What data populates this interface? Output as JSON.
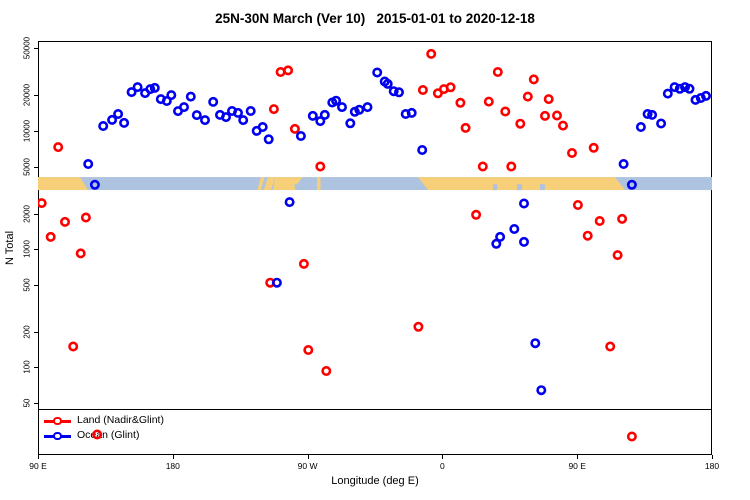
{
  "title": "25N-30N March (Ver 10)   2015-01-01 to 2020-12-18",
  "chart_data": {
    "type": "scatter",
    "title": "25N-30N March (Ver 10)   2015-01-01 to 2020-12-18",
    "xlabel": "Longitude (deg E)",
    "ylabel": "N Total",
    "x_axis": {
      "note": "longitude drawn sequentially eastward from 90E, spanning 450 degrees",
      "range": [
        90,
        540
      ],
      "ticks": [
        {
          "pos": 90,
          "label": "90 E"
        },
        {
          "pos": 180,
          "label": "180"
        },
        {
          "pos": 270,
          "label": "90 W"
        },
        {
          "pos": 360,
          "label": "0"
        },
        {
          "pos": 450,
          "label": "90 E"
        },
        {
          "pos": 540,
          "label": "180"
        }
      ]
    },
    "y_axis": {
      "scale": "log",
      "ticks": [
        50000,
        20000,
        10000,
        5000,
        2000,
        1000,
        500,
        200,
        100,
        50
      ],
      "top_value": 50000,
      "bottom_value": 18
    },
    "map_band": {
      "description": "land/ocean strip for 25N-30N drawn across all longitudes",
      "value_top": 4070,
      "value_bottom": 3160,
      "land_color": "#F7CF78",
      "ocean_color": "#AEC3DF",
      "land_polygons": [
        {
          "tf": 90,
          "tt": 118,
          "bt": 123.4,
          "bf": 90,
          "h": 1
        },
        {
          "tf": 238.8,
          "tt": 241.2,
          "bt": 238.8,
          "bf": 236.5,
          "h": 1
        },
        {
          "tf": 243.5,
          "tt": 248.5,
          "bt": 245.5,
          "bf": 240.8,
          "h": 1
        },
        {
          "tf": 248.5,
          "tt": 260.3,
          "bt": 261.8,
          "bf": 246.8,
          "h": 1
        },
        {
          "tf": 260.3,
          "tt": 266.5,
          "bt": 263.0,
          "bf": 260.3,
          "h": 0.55
        },
        {
          "tf": 276.3,
          "tt": 278.6,
          "bt": 278.6,
          "bf": 276.3,
          "h": 1
        },
        {
          "tf": 343.7,
          "tt": 475.2,
          "bt": 481.9,
          "bf": 350.4,
          "h": 1
        }
      ],
      "ocean_specks_bottom": [
        {
          "from": 393.8,
          "to": 396.6
        },
        {
          "from": 409.8,
          "to": 413.2
        },
        {
          "from": 425.1,
          "to": 428.4
        }
      ]
    },
    "series": [
      {
        "name": "Land (Nadir&Glint)",
        "color": "#FF0000",
        "points": [
          [
            103.5,
            7300
          ],
          [
            92.5,
            2450
          ],
          [
            98.5,
            1270
          ],
          [
            108,
            1700
          ],
          [
            113.5,
            150
          ],
          [
            118.5,
            920
          ],
          [
            122,
            1850
          ],
          [
            129.5,
            27
          ],
          [
            245,
            520
          ],
          [
            247.5,
            15300
          ],
          [
            252,
            31500
          ],
          [
            257,
            32500
          ],
          [
            261.5,
            10400
          ],
          [
            267.5,
            750
          ],
          [
            270.5,
            140
          ],
          [
            278.5,
            5000
          ],
          [
            282.5,
            93
          ],
          [
            344,
            220
          ],
          [
            347,
            22200
          ],
          [
            352.5,
            44800
          ],
          [
            357,
            20800
          ],
          [
            361,
            22600
          ],
          [
            365.5,
            23400
          ],
          [
            372,
            17300
          ],
          [
            375.5,
            10600
          ],
          [
            382.5,
            1950
          ],
          [
            387,
            5000
          ],
          [
            391,
            17700
          ],
          [
            397,
            31500
          ],
          [
            402,
            14600
          ],
          [
            406,
            5000
          ],
          [
            412,
            11500
          ],
          [
            417,
            19500
          ],
          [
            421,
            27300
          ],
          [
            428.5,
            13400
          ],
          [
            431,
            18600
          ],
          [
            436.5,
            13500
          ],
          [
            440.5,
            11100
          ],
          [
            446.5,
            6500
          ],
          [
            450.5,
            2360
          ],
          [
            457,
            1300
          ],
          [
            461,
            7200
          ],
          [
            465,
            1730
          ],
          [
            472,
            150
          ],
          [
            477,
            890
          ],
          [
            480,
            1800
          ],
          [
            486.5,
            26
          ]
        ]
      },
      {
        "name": "Ocean (Glint)",
        "color": "#0000EE",
        "points": [
          [
            123.5,
            5250
          ],
          [
            128,
            3500
          ],
          [
            133.5,
            11000
          ],
          [
            139.5,
            12400
          ],
          [
            143.5,
            13900
          ],
          [
            147.5,
            11700
          ],
          [
            152.5,
            21300
          ],
          [
            156.5,
            23500
          ],
          [
            161.5,
            20900
          ],
          [
            165,
            22600
          ],
          [
            168,
            23100
          ],
          [
            172,
            18600
          ],
          [
            176,
            17900
          ],
          [
            179,
            20100
          ],
          [
            183.5,
            14700
          ],
          [
            187.5,
            15900
          ],
          [
            192,
            19500
          ],
          [
            196,
            13600
          ],
          [
            201.5,
            12350
          ],
          [
            207,
            17600
          ],
          [
            211.5,
            13650
          ],
          [
            215.5,
            13100
          ],
          [
            219.5,
            14750
          ],
          [
            223.5,
            14200
          ],
          [
            227,
            12350
          ],
          [
            232,
            14750
          ],
          [
            236,
            10000
          ],
          [
            240,
            10800
          ],
          [
            244,
            8500
          ],
          [
            249.5,
            520
          ],
          [
            258,
            2500
          ],
          [
            265.5,
            9050
          ],
          [
            273.5,
            13400
          ],
          [
            278.5,
            12100
          ],
          [
            281.5,
            13650
          ],
          [
            286.5,
            17400
          ],
          [
            289,
            18000
          ],
          [
            293,
            15900
          ],
          [
            298.5,
            11600
          ],
          [
            301.5,
            14500
          ],
          [
            304.5,
            15100
          ],
          [
            310,
            15900
          ],
          [
            316.5,
            31200
          ],
          [
            321.5,
            26200
          ],
          [
            323.5,
            25000
          ],
          [
            327.5,
            21700
          ],
          [
            331,
            21200
          ],
          [
            335.5,
            13900
          ],
          [
            339.5,
            14200
          ],
          [
            346.5,
            6900
          ],
          [
            396,
            1110
          ],
          [
            398.5,
            1270
          ],
          [
            408,
            1480
          ],
          [
            414.5,
            2430
          ],
          [
            414.5,
            1150
          ],
          [
            422,
            160
          ],
          [
            426,
            64
          ],
          [
            481,
            5250
          ],
          [
            486.5,
            3500
          ],
          [
            492.5,
            10800
          ],
          [
            497,
            13900
          ],
          [
            500,
            13650
          ],
          [
            506,
            11550
          ],
          [
            510.5,
            20700
          ],
          [
            515,
            23500
          ],
          [
            518.5,
            22700
          ],
          [
            522,
            23500
          ],
          [
            525,
            22700
          ],
          [
            529,
            18300
          ],
          [
            532.5,
            19000
          ],
          [
            536,
            19800
          ]
        ]
      }
    ],
    "legend": {
      "position": "bottom-left",
      "entries": [
        {
          "label": "Land (Nadir&Glint)",
          "color": "#FF0000"
        },
        {
          "label": "Ocean (Glint)",
          "color": "#0000EE"
        }
      ]
    },
    "grid": false
  }
}
